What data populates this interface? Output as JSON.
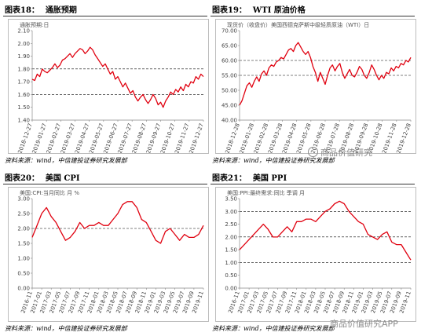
{
  "figures": [
    {
      "number": "图表18：",
      "title": "通胀预期",
      "source": "资料来源：wind，中信建投证券研究发展部"
    },
    {
      "number": "图表19：",
      "title": "WTI 原油价格",
      "source": "资料来源：wind，中信建投证券研究发展部"
    },
    {
      "number": "图表20：",
      "title": "美国 CPI",
      "source": "资料来源：wind，中信建投证券研究发展部"
    },
    {
      "number": "图表21：",
      "title": "美国 PPI",
      "source": "资料来源：wind，中信建投证券研究发展部"
    }
  ],
  "watermarks": [
    "商品价值研究",
    "商品价值研究APP"
  ],
  "colors": {
    "line": "#e0000f",
    "grid": "#000000",
    "axis": "#888888"
  },
  "chart_data": [
    {
      "type": "line",
      "legend": "通胀预期:日",
      "x_ticks": [
        "2018-12-27",
        "2019-01-27",
        "2019-02-27",
        "2019-03-27",
        "2019-04-27",
        "2019-05-27",
        "2019-06-27",
        "2019-07-27",
        "2019-08-27",
        "2019-09-27",
        "2019-10-27",
        "2019-11-27",
        "2019-12-27"
      ],
      "y_ticks": [
        "2.10",
        "2.00",
        "1.90",
        "1.80",
        "1.70",
        "1.60",
        "1.50",
        "1.40"
      ],
      "ylim": [
        1.4,
        2.1
      ],
      "dashed_gridlines": [
        1.8,
        1.6
      ],
      "values": [
        1.72,
        1.71,
        1.76,
        1.74,
        1.8,
        1.78,
        1.77,
        1.79,
        1.81,
        1.84,
        1.81,
        1.83,
        1.87,
        1.88,
        1.9,
        1.92,
        1.89,
        1.92,
        1.94,
        1.96,
        1.95,
        1.92,
        1.94,
        1.97,
        1.95,
        1.91,
        1.88,
        1.85,
        1.82,
        1.84,
        1.8,
        1.76,
        1.78,
        1.72,
        1.74,
        1.7,
        1.66,
        1.69,
        1.65,
        1.61,
        1.63,
        1.58,
        1.55,
        1.58,
        1.6,
        1.56,
        1.53,
        1.56,
        1.6,
        1.57,
        1.52,
        1.54,
        1.5,
        1.55,
        1.58,
        1.62,
        1.6,
        1.64,
        1.62,
        1.66,
        1.63,
        1.68,
        1.66,
        1.7,
        1.69,
        1.74,
        1.72,
        1.76,
        1.74
      ]
    },
    {
      "type": "line",
      "legend": "现货价（收盘价）美国西德克萨斯中级轻质原油（WTI）日",
      "x_ticks": [
        "2018-12-28",
        "2019-01-28",
        "2019-02-28",
        "2019-03-28",
        "2019-04-28",
        "2019-05-28",
        "2019-06-28",
        "2019-07-28",
        "2019-08-28",
        "2019-09-28",
        "2019-10-28",
        "2019-11-28",
        "2019-12-28"
      ],
      "y_ticks": [
        "70.00",
        "65.00",
        "60.00",
        "55.00",
        "50.00",
        "45.00",
        "40.00"
      ],
      "ylim": [
        40,
        70
      ],
      "dashed_gridlines": [
        60,
        55
      ],
      "values": [
        45.0,
        46.5,
        49.0,
        51.5,
        52.5,
        51.0,
        53.0,
        54.5,
        53.0,
        55.5,
        56.5,
        55.0,
        57.5,
        58.5,
        58.0,
        59.5,
        60.0,
        61.0,
        60.5,
        62.0,
        63.5,
        64.0,
        63.0,
        65.0,
        66.0,
        64.5,
        63.0,
        62.0,
        63.0,
        61.0,
        58.0,
        56.0,
        53.0,
        56.0,
        54.0,
        52.0,
        55.0,
        57.5,
        58.5,
        56.5,
        58.0,
        59.0,
        56.0,
        54.0,
        55.5,
        57.0,
        55.0,
        54.5,
        56.0,
        58.0,
        57.0,
        55.0,
        54.0,
        56.0,
        58.5,
        57.0,
        55.0,
        53.5,
        55.0,
        54.0,
        56.0,
        55.5,
        57.5,
        56.5,
        58.0,
        57.5,
        59.0,
        58.5,
        60.0,
        59.5,
        61.0
      ]
    },
    {
      "type": "line",
      "legend": "美国:CPI:当月同比 月 %",
      "x_ticks": [
        "2016-11",
        "2017-01",
        "2017-03",
        "2017-05",
        "2017-07",
        "2017-09",
        "2017-11",
        "2018-01",
        "2018-03",
        "2018-05",
        "2018-07",
        "2018-09",
        "2018-11",
        "2019-01",
        "2019-03",
        "2019-05",
        "2019-07",
        "2019-09",
        "2019-11"
      ],
      "y_ticks": [
        "3.00",
        "2.50",
        "2.00",
        "1.50",
        "1.00",
        "0.50",
        "0.00"
      ],
      "ylim": [
        0,
        3
      ],
      "dashed_gridlines": [
        2.0
      ],
      "values": [
        1.7,
        2.1,
        2.5,
        2.7,
        2.4,
        2.2,
        1.9,
        1.6,
        1.7,
        1.9,
        2.2,
        2.0,
        2.1,
        2.1,
        2.2,
        2.1,
        2.1,
        2.3,
        2.5,
        2.8,
        2.9,
        2.9,
        2.7,
        2.3,
        2.2,
        1.9,
        1.6,
        1.5,
        1.9,
        2.0,
        1.8,
        1.6,
        1.8,
        1.7,
        1.7,
        1.8,
        2.1
      ]
    },
    {
      "type": "line",
      "legend": "美国:PPI:最终需求:同比 季调 月",
      "x_ticks": [
        "2016-11",
        "2017-01",
        "2017-03",
        "2017-05",
        "2017-07",
        "2017-09",
        "2017-11",
        "2018-01",
        "2018-03",
        "2018-05",
        "2018-07",
        "2018-09",
        "2018-11",
        "2019-01",
        "2019-03",
        "2019-05",
        "2019-07",
        "2019-09",
        "2019-11"
      ],
      "y_ticks": [
        "3.50",
        "3.00",
        "2.50",
        "2.00",
        "1.50",
        "1.00",
        "0.50",
        "0.00"
      ],
      "ylim": [
        0,
        3.5
      ],
      "dashed_gridlines": [
        3.0,
        2.0,
        1.0
      ],
      "values": [
        1.5,
        1.7,
        1.9,
        2.1,
        2.3,
        2.5,
        2.3,
        2.0,
        2.0,
        2.2,
        2.4,
        2.2,
        2.6,
        2.6,
        2.7,
        2.7,
        2.6,
        2.8,
        3.0,
        3.1,
        3.3,
        3.4,
        3.3,
        3.0,
        2.8,
        2.6,
        2.5,
        2.1,
        2.0,
        1.9,
        2.1,
        2.2,
        1.8,
        1.7,
        1.7,
        1.4,
        1.1
      ]
    }
  ]
}
